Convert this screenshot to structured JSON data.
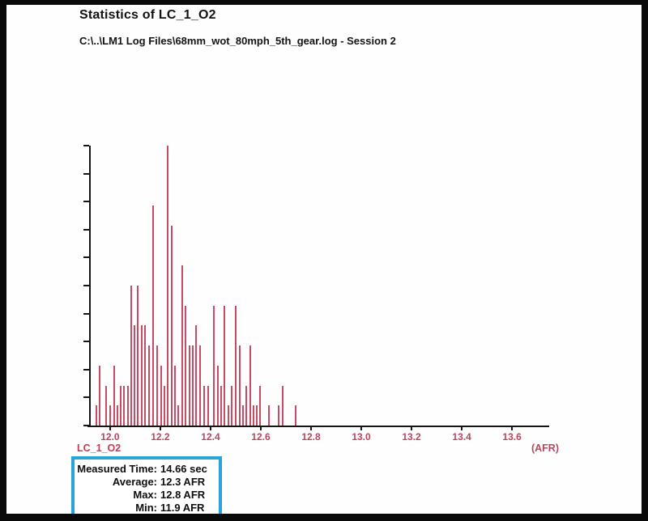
{
  "chart_data": {
    "type": "bar",
    "title": "Statistics of LC_1_O2",
    "subtitle": "C:\\..\\LM1 Log Files\\68mm_wot_80mph_5th_gear.log - Session 2",
    "xlabel": "(AFR)",
    "ylabel": "",
    "series_name": "LC_1_O2",
    "grid": false,
    "legend": "none",
    "bar_color": "#c84b63",
    "axis_label_color": "#b8465c",
    "x_ticks": [
      "12.0",
      "12.2",
      "12.4",
      "12.6",
      "12.8",
      "13.0",
      "13.2",
      "13.4",
      "13.6"
    ],
    "x_range": [
      11.91,
      13.748
    ],
    "y_range": [
      0,
      14
    ],
    "y_ticks_count": 11,
    "bars": [
      {
        "afr": 11.944,
        "count": 1
      },
      {
        "afr": 11.958,
        "count": 3
      },
      {
        "afr": 11.985,
        "count": 2
      },
      {
        "afr": 12.001,
        "count": 1
      },
      {
        "afr": 12.015,
        "count": 3
      },
      {
        "afr": 12.028,
        "count": 1
      },
      {
        "afr": 12.042,
        "count": 2
      },
      {
        "afr": 12.056,
        "count": 2
      },
      {
        "afr": 12.07,
        "count": 2
      },
      {
        "afr": 12.083,
        "count": 7
      },
      {
        "afr": 12.097,
        "count": 5
      },
      {
        "afr": 12.111,
        "count": 7
      },
      {
        "afr": 12.125,
        "count": 5
      },
      {
        "afr": 12.138,
        "count": 5
      },
      {
        "afr": 12.155,
        "count": 4
      },
      {
        "afr": 12.172,
        "count": 11
      },
      {
        "afr": 12.187,
        "count": 4
      },
      {
        "afr": 12.202,
        "count": 3
      },
      {
        "afr": 12.215,
        "count": 2
      },
      {
        "afr": 12.229,
        "count": 14
      },
      {
        "afr": 12.244,
        "count": 10
      },
      {
        "afr": 12.257,
        "count": 3
      },
      {
        "afr": 12.272,
        "count": 1
      },
      {
        "afr": 12.286,
        "count": 8
      },
      {
        "afr": 12.3,
        "count": 6
      },
      {
        "afr": 12.315,
        "count": 4
      },
      {
        "afr": 12.329,
        "count": 4
      },
      {
        "afr": 12.343,
        "count": 5
      },
      {
        "afr": 12.357,
        "count": 4
      },
      {
        "afr": 12.374,
        "count": 2
      },
      {
        "afr": 12.389,
        "count": 2
      },
      {
        "afr": 12.414,
        "count": 6
      },
      {
        "afr": 12.428,
        "count": 3
      },
      {
        "afr": 12.442,
        "count": 2
      },
      {
        "afr": 12.456,
        "count": 6
      },
      {
        "afr": 12.471,
        "count": 1
      },
      {
        "afr": 12.485,
        "count": 2
      },
      {
        "afr": 12.5,
        "count": 6
      },
      {
        "afr": 12.515,
        "count": 4
      },
      {
        "afr": 12.529,
        "count": 1
      },
      {
        "afr": 12.543,
        "count": 2
      },
      {
        "afr": 12.557,
        "count": 4
      },
      {
        "afr": 12.57,
        "count": 1
      },
      {
        "afr": 12.584,
        "count": 1
      },
      {
        "afr": 12.598,
        "count": 2
      },
      {
        "afr": 12.632,
        "count": 1
      },
      {
        "afr": 12.672,
        "count": 1
      },
      {
        "afr": 12.688,
        "count": 2
      },
      {
        "afr": 12.74,
        "count": 1
      }
    ]
  },
  "stats_panel": {
    "border_color": "#29a4d8",
    "rows": [
      {
        "label": "Measured Time:",
        "value": "14.66 sec"
      },
      {
        "label": "Average:",
        "value": "12.3 AFR"
      },
      {
        "label": "Max:",
        "value": "12.8 AFR"
      },
      {
        "label": "Min:",
        "value": "11.9 AFR"
      }
    ]
  }
}
